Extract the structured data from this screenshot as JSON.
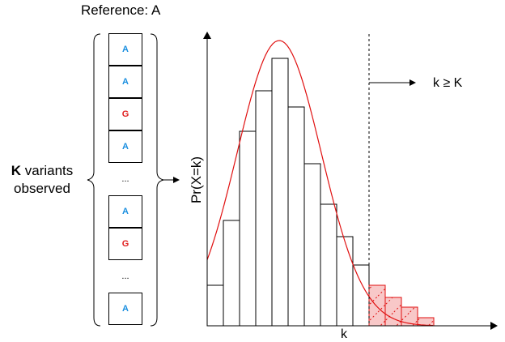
{
  "reference_label": "Reference: A",
  "variants_label": {
    "bold": "K",
    "line1_rest": " variants",
    "line2": "observed"
  },
  "reads": [
    {
      "base": "A",
      "color": "#1b8fe0"
    },
    {
      "base": "A",
      "color": "#1b8fe0"
    },
    {
      "base": "G",
      "color": "#e02020"
    },
    {
      "base": "A",
      "color": "#1b8fe0"
    },
    {
      "base": "...",
      "color": "#000000",
      "ellipsis": true
    },
    {
      "base": "A",
      "color": "#1b8fe0"
    },
    {
      "base": "G",
      "color": "#e02020"
    },
    {
      "base": "...",
      "color": "#000000",
      "ellipsis": true
    },
    {
      "base": "A",
      "color": "#1b8fe0"
    }
  ],
  "chart_data": {
    "type": "bar",
    "ylabel": "Pr(X=k)",
    "xlabel": "k",
    "threshold_label": "k ≥ K",
    "values": [
      5,
      13,
      24,
      29,
      33,
      27,
      20,
      15,
      11,
      7.5,
      5.0,
      3.5,
      2.3,
      1.0
    ],
    "fit_curve": "normal",
    "threshold_index": 10,
    "tail_color": "#f8c8c8",
    "curve_color": "#e01010"
  }
}
